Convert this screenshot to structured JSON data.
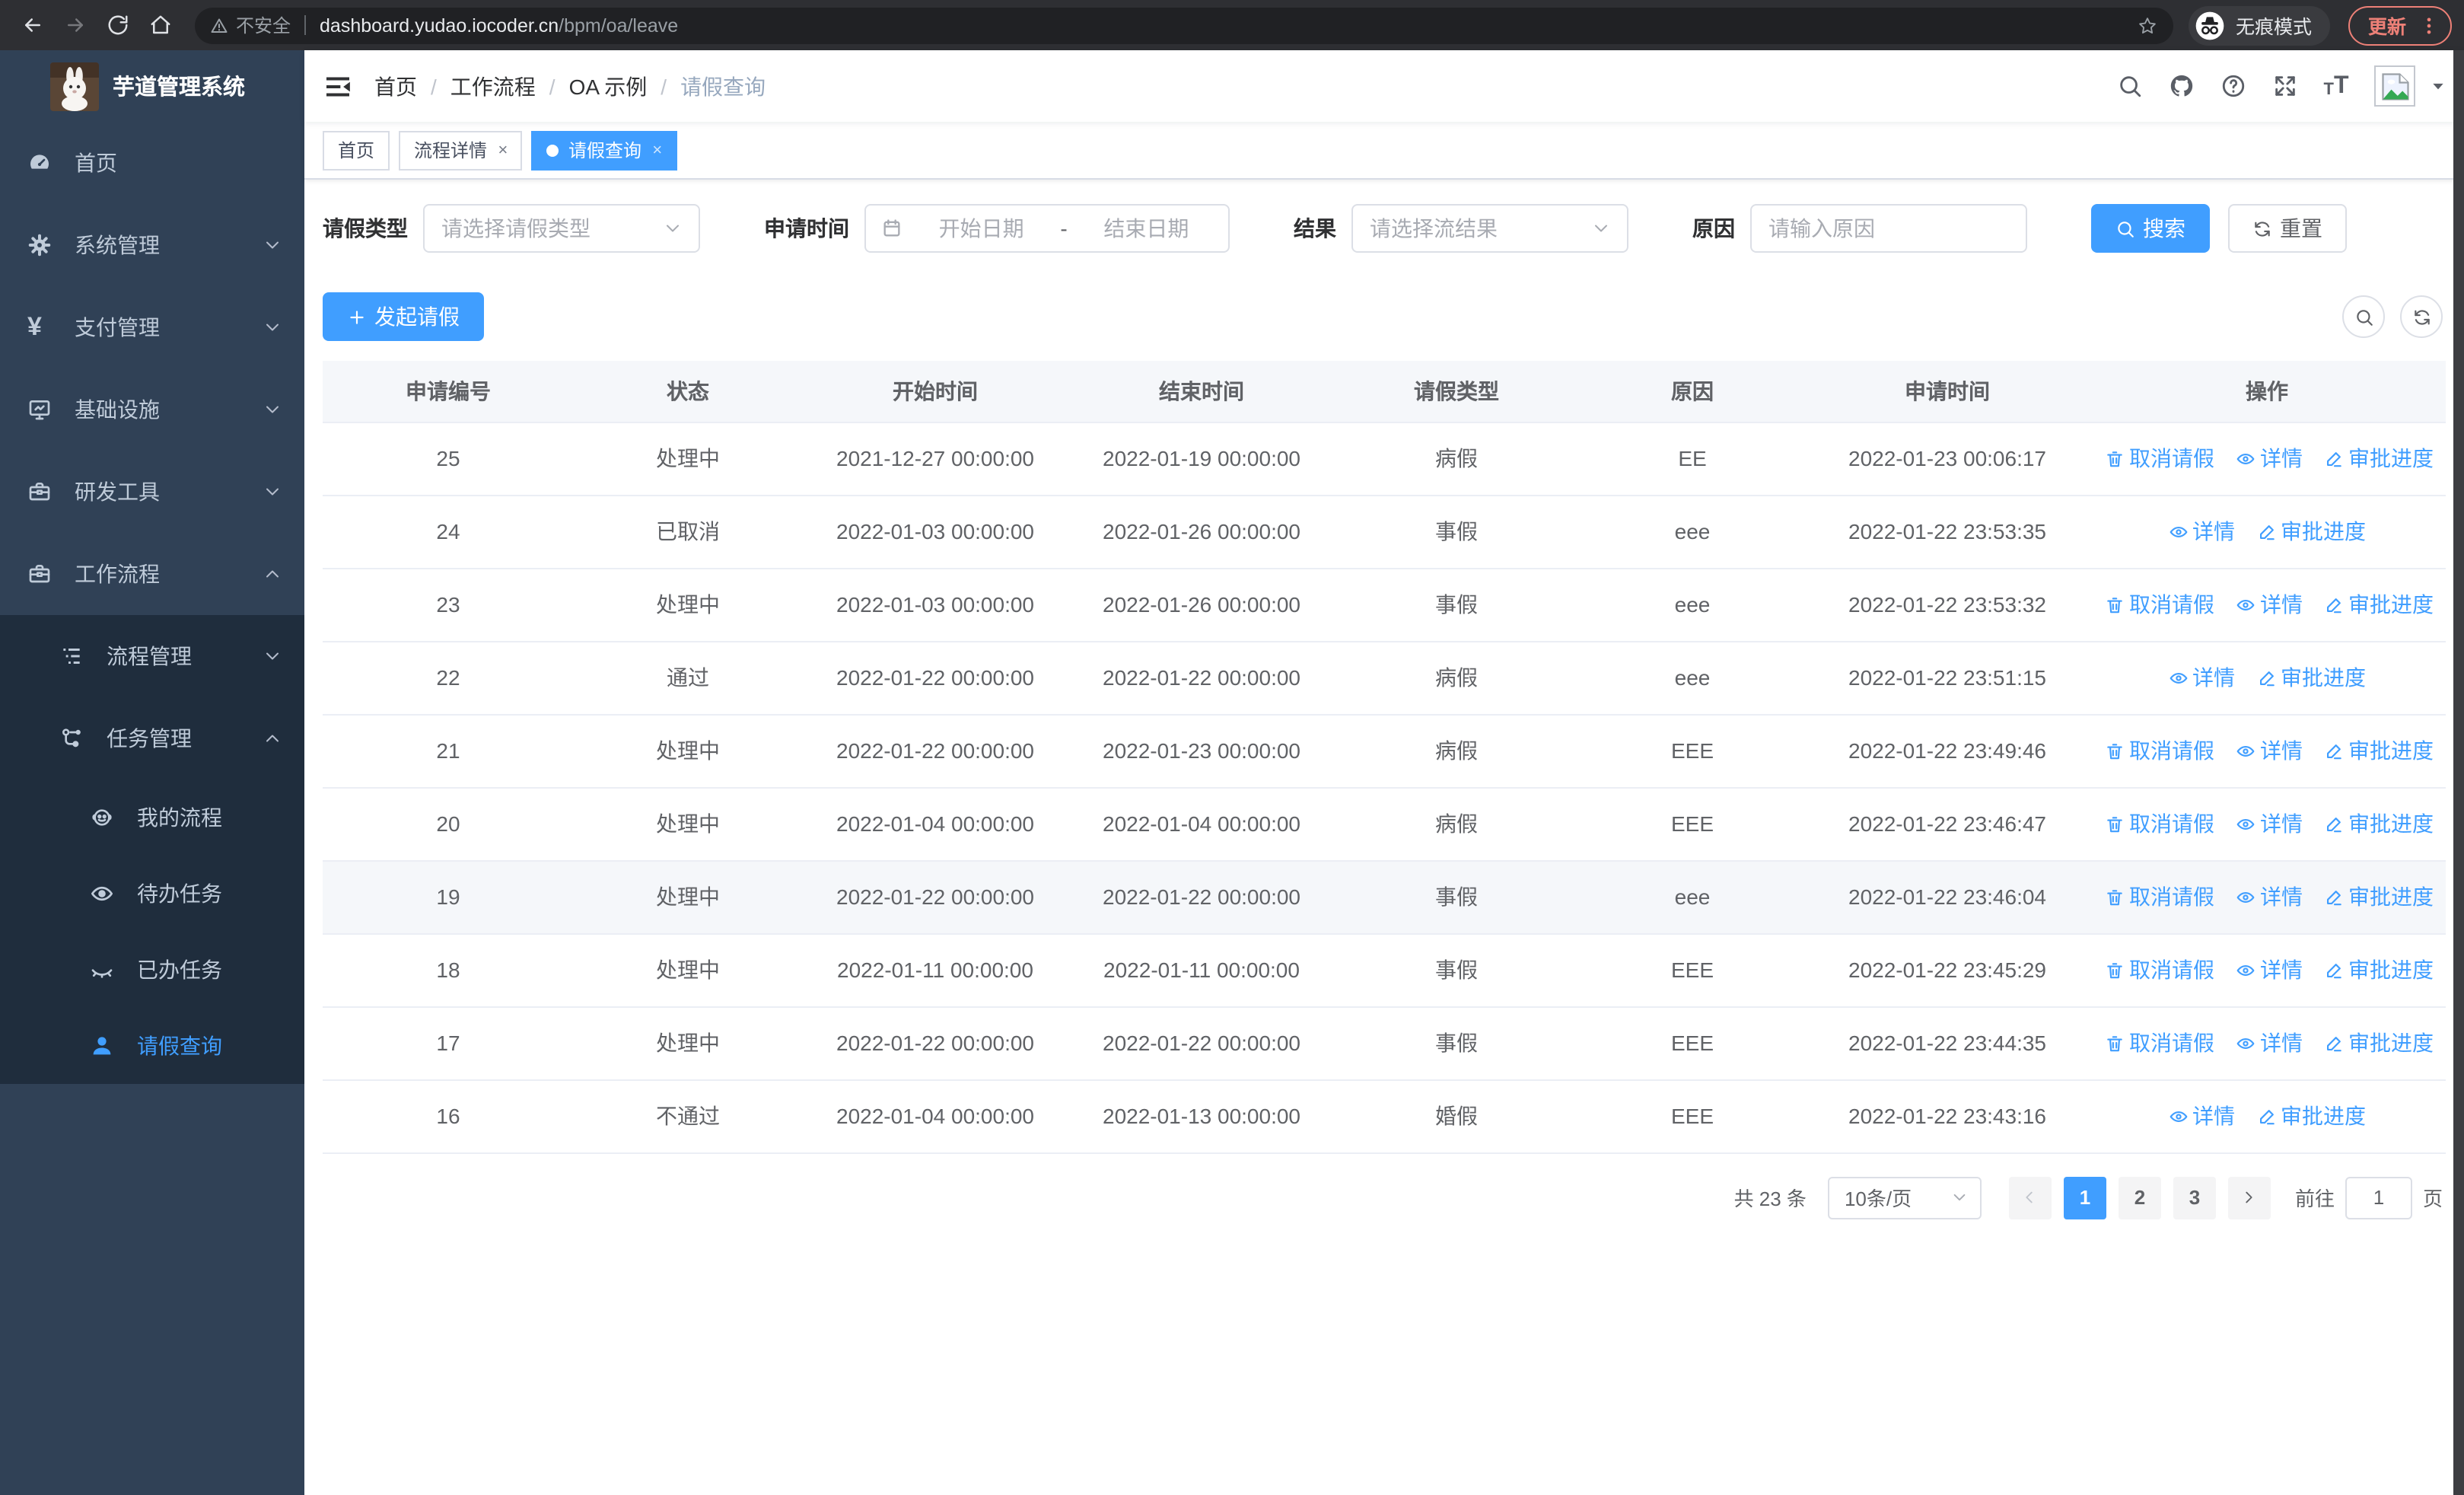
{
  "browser": {
    "security_label": "不安全",
    "url_host": "dashboard.yudao.iocoder.cn",
    "url_path": "/bpm/oa/leave",
    "incognito_label": "无痕模式",
    "update_label": "更新"
  },
  "colors": {
    "primary": "#409eff",
    "sidebar_bg": "#304156",
    "submenu_bg": "#1f2d3d",
    "update_accent": "#ed8077",
    "table_header_bg": "#f5f7fa"
  },
  "sidebar": {
    "title": "芋道管理系统",
    "items": [
      {
        "id": "home",
        "label": "首页",
        "icon": "dashboard-icon",
        "level": 1,
        "chevron": null,
        "group": false,
        "active": false
      },
      {
        "id": "system",
        "label": "系统管理",
        "icon": "gear-icon",
        "level": 1,
        "chevron": "down",
        "group": false,
        "active": false
      },
      {
        "id": "payment",
        "label": "支付管理",
        "icon": "yen-icon",
        "level": 1,
        "chevron": "down",
        "group": false,
        "active": false
      },
      {
        "id": "infra",
        "label": "基础设施",
        "icon": "monitor-icon",
        "level": 1,
        "chevron": "down",
        "group": false,
        "active": false
      },
      {
        "id": "devtools",
        "label": "研发工具",
        "icon": "toolbox-icon",
        "level": 1,
        "chevron": "down",
        "group": false,
        "active": false
      },
      {
        "id": "workflow",
        "label": "工作流程",
        "icon": "toolbox-icon",
        "level": 1,
        "chevron": "up",
        "group": false,
        "active": false
      },
      {
        "id": "process-mgmt",
        "label": "流程管理",
        "icon": "list-icon",
        "level": 2,
        "chevron": "down",
        "group": true,
        "active": false
      },
      {
        "id": "task-mgmt",
        "label": "任务管理",
        "icon": "flow-icon",
        "level": 2,
        "chevron": "up",
        "group": true,
        "active": false
      },
      {
        "id": "my-process",
        "label": "我的流程",
        "icon": "face-icon",
        "level": 3,
        "chevron": null,
        "group": true,
        "active": false
      },
      {
        "id": "todo-tasks",
        "label": "待办任务",
        "icon": "eye-open-icon",
        "level": 3,
        "chevron": null,
        "group": true,
        "active": false
      },
      {
        "id": "done-tasks",
        "label": "已办任务",
        "icon": "eye-closed-icon",
        "level": 3,
        "chevron": null,
        "group": true,
        "active": false
      },
      {
        "id": "leave-query",
        "label": "请假查询",
        "icon": "user-icon",
        "level": 3,
        "chevron": null,
        "group": true,
        "active": true
      }
    ]
  },
  "navbar": {
    "breadcrumb": [
      "首页",
      "工作流程",
      "OA 示例",
      "请假查询"
    ],
    "right_icons": [
      "search-icon",
      "github-icon",
      "question-icon",
      "fullscreen-icon",
      "font-size-icon"
    ]
  },
  "tabs": [
    {
      "label": "首页",
      "closable": false,
      "active": false
    },
    {
      "label": "流程详情",
      "closable": true,
      "active": false
    },
    {
      "label": "请假查询",
      "closable": true,
      "active": true
    }
  ],
  "filters": {
    "leave_type": {
      "label": "请假类型",
      "placeholder": "请选择请假类型"
    },
    "apply_time": {
      "label": "申请时间",
      "start_placeholder": "开始日期",
      "separator": "-",
      "end_placeholder": "结束日期"
    },
    "result": {
      "label": "结果",
      "placeholder": "请选择流结果"
    },
    "reason": {
      "label": "原因",
      "placeholder": "请输入原因"
    },
    "search_label": "搜索",
    "reset_label": "重置"
  },
  "toolbar": {
    "create_label": "发起请假"
  },
  "table": {
    "columns": [
      "申请编号",
      "状态",
      "开始时间",
      "结束时间",
      "请假类型",
      "原因",
      "申请时间",
      "操作"
    ],
    "action_defs": {
      "cancel": {
        "label": "取消请假",
        "icon": "trash-icon"
      },
      "detail": {
        "label": "详情",
        "icon": "view-icon"
      },
      "progress": {
        "label": "审批进度",
        "icon": "edit-icon"
      }
    },
    "rows": [
      {
        "id": "25",
        "status": "处理中",
        "start": "2021-12-27 00:00:00",
        "end": "2022-01-19 00:00:00",
        "type": "病假",
        "reason": "EE",
        "apply_time": "2022-01-23 00:06:17",
        "actions": [
          "cancel",
          "detail",
          "progress"
        ],
        "highlight": false
      },
      {
        "id": "24",
        "status": "已取消",
        "start": "2022-01-03 00:00:00",
        "end": "2022-01-26 00:00:00",
        "type": "事假",
        "reason": "eee",
        "apply_time": "2022-01-22 23:53:35",
        "actions": [
          "detail",
          "progress"
        ],
        "highlight": false
      },
      {
        "id": "23",
        "status": "处理中",
        "start": "2022-01-03 00:00:00",
        "end": "2022-01-26 00:00:00",
        "type": "事假",
        "reason": "eee",
        "apply_time": "2022-01-22 23:53:32",
        "actions": [
          "cancel",
          "detail",
          "progress"
        ],
        "highlight": false
      },
      {
        "id": "22",
        "status": "通过",
        "start": "2022-01-22 00:00:00",
        "end": "2022-01-22 00:00:00",
        "type": "病假",
        "reason": "eee",
        "apply_time": "2022-01-22 23:51:15",
        "actions": [
          "detail",
          "progress"
        ],
        "highlight": false
      },
      {
        "id": "21",
        "status": "处理中",
        "start": "2022-01-22 00:00:00",
        "end": "2022-01-23 00:00:00",
        "type": "病假",
        "reason": "EEE",
        "apply_time": "2022-01-22 23:49:46",
        "actions": [
          "cancel",
          "detail",
          "progress"
        ],
        "highlight": false
      },
      {
        "id": "20",
        "status": "处理中",
        "start": "2022-01-04 00:00:00",
        "end": "2022-01-04 00:00:00",
        "type": "病假",
        "reason": "EEE",
        "apply_time": "2022-01-22 23:46:47",
        "actions": [
          "cancel",
          "detail",
          "progress"
        ],
        "highlight": false
      },
      {
        "id": "19",
        "status": "处理中",
        "start": "2022-01-22 00:00:00",
        "end": "2022-01-22 00:00:00",
        "type": "事假",
        "reason": "eee",
        "apply_time": "2022-01-22 23:46:04",
        "actions": [
          "cancel",
          "detail",
          "progress"
        ],
        "highlight": true
      },
      {
        "id": "18",
        "status": "处理中",
        "start": "2022-01-11 00:00:00",
        "end": "2022-01-11 00:00:00",
        "type": "事假",
        "reason": "EEE",
        "apply_time": "2022-01-22 23:45:29",
        "actions": [
          "cancel",
          "detail",
          "progress"
        ],
        "highlight": false
      },
      {
        "id": "17",
        "status": "处理中",
        "start": "2022-01-22 00:00:00",
        "end": "2022-01-22 00:00:00",
        "type": "事假",
        "reason": "EEE",
        "apply_time": "2022-01-22 23:44:35",
        "actions": [
          "cancel",
          "detail",
          "progress"
        ],
        "highlight": false
      },
      {
        "id": "16",
        "status": "不通过",
        "start": "2022-01-04 00:00:00",
        "end": "2022-01-13 00:00:00",
        "type": "婚假",
        "reason": "EEE",
        "apply_time": "2022-01-22 23:43:16",
        "actions": [
          "detail",
          "progress"
        ],
        "highlight": false
      }
    ]
  },
  "pagination": {
    "total": "共 23 条",
    "page_size": "10条/页",
    "pages": [
      "1",
      "2",
      "3"
    ],
    "active_page": "1",
    "goto_label": "前往",
    "goto_value": "1",
    "unit_label": "页"
  }
}
